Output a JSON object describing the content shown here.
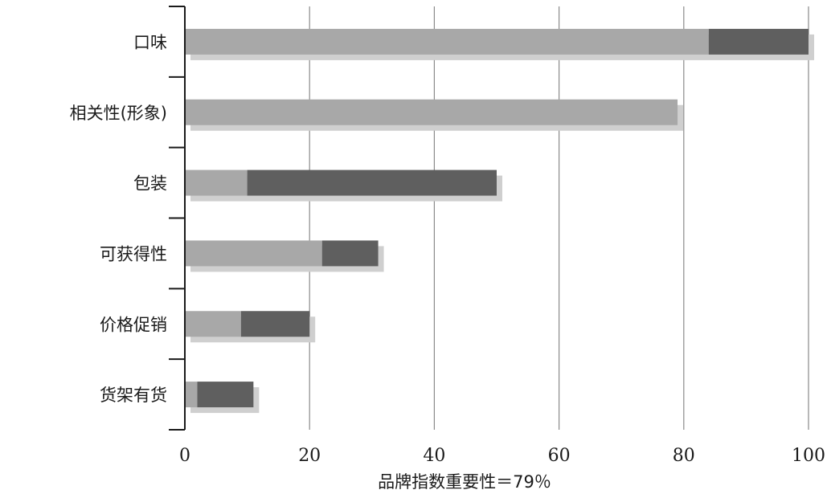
{
  "chart_data": {
    "type": "bar",
    "orientation": "horizontal",
    "stacked": true,
    "categories": [
      "口味",
      "相关性(形象)",
      "包装",
      "可获得性",
      "价格促销",
      "货架有货"
    ],
    "series": [
      {
        "values": [
          84,
          79,
          10,
          22,
          9,
          2
        ],
        "color": "#a8a8a8"
      },
      {
        "values": [
          16,
          0,
          40,
          9,
          11,
          9
        ],
        "color": "#5f5f5f"
      }
    ],
    "xlim": [
      0,
      100
    ],
    "xticks": [
      0,
      20,
      40,
      60,
      80,
      100
    ],
    "xlabel": "品牌指数重要性＝79％",
    "grid": "vertical",
    "shadow_color": "#cfcfcf"
  }
}
